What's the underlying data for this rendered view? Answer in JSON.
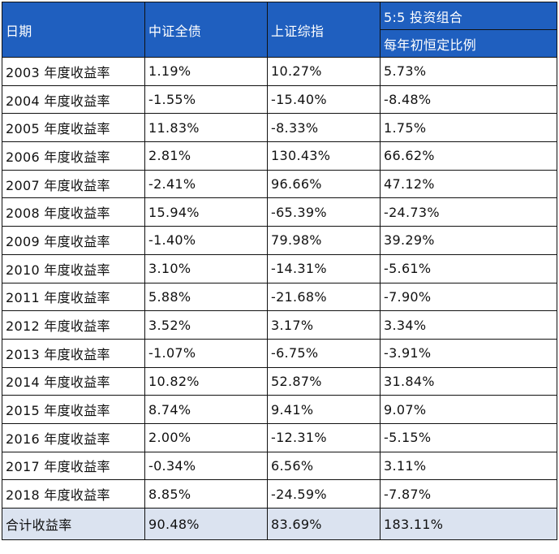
{
  "header": {
    "date": "日期",
    "col1": "中证全债",
    "col2": "上证综指",
    "col3": "5:5 投资组合",
    "col3_sub": "每年初恒定比例"
  },
  "rows": [
    {
      "label": "2003 年度收益率",
      "a": "1.19%",
      "b": "10.27%",
      "c": "5.73%"
    },
    {
      "label": "2004 年度收益率",
      "a": "-1.55%",
      "b": "-15.40%",
      "c": "-8.48%"
    },
    {
      "label": "2005 年度收益率",
      "a": "11.83%",
      "b": "-8.33%",
      "c": "1.75%"
    },
    {
      "label": "2006 年度收益率",
      "a": "2.81%",
      "b": "130.43%",
      "c": "66.62%"
    },
    {
      "label": "2007 年度收益率",
      "a": "-2.41%",
      "b": "96.66%",
      "c": "47.12%"
    },
    {
      "label": "2008 年度收益率",
      "a": "15.94%",
      "b": "-65.39%",
      "c": "-24.73%"
    },
    {
      "label": "2009 年度收益率",
      "a": "-1.40%",
      "b": "79.98%",
      "c": "39.29%"
    },
    {
      "label": "2010 年度收益率",
      "a": "3.10%",
      "b": "-14.31%",
      "c": "-5.61%"
    },
    {
      "label": "2011 年度收益率",
      "a": "5.88%",
      "b": "-21.68%",
      "c": "-7.90%"
    },
    {
      "label": "2012 年度收益率",
      "a": "3.52%",
      "b": "3.17%",
      "c": "3.34%"
    },
    {
      "label": "2013 年度收益率",
      "a": "-1.07%",
      "b": "-6.75%",
      "c": "-3.91%"
    },
    {
      "label": "2014 年度收益率",
      "a": "10.82%",
      "b": "52.87%",
      "c": "31.84%"
    },
    {
      "label": "2015 年度收益率",
      "a": "8.74%",
      "b": "9.41%",
      "c": "9.07%"
    },
    {
      "label": "2016 年度收益率",
      "a": "2.00%",
      "b": "-12.31%",
      "c": "-5.15%"
    },
    {
      "label": "2017 年度收益率",
      "a": "-0.34%",
      "b": "6.56%",
      "c": "3.11%"
    },
    {
      "label": "2018 年度收益率",
      "a": "8.85%",
      "b": "-24.59%",
      "c": "-7.87%"
    }
  ],
  "total": {
    "label": "合计收益率",
    "a": "90.48%",
    "b": "83.69%",
    "c": "183.11%"
  },
  "colors": {
    "header_bg": "#1f5fbf",
    "header_text": "#ffffff",
    "total_bg": "#dbe3f0"
  }
}
